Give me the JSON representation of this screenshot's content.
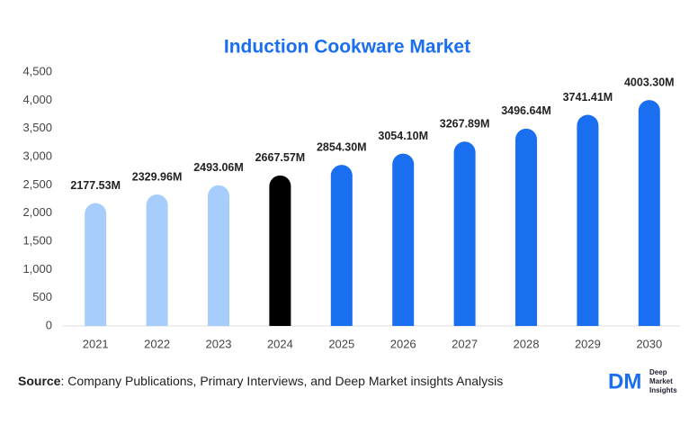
{
  "chart_data": {
    "type": "bar",
    "title": "Induction Cookware Market",
    "categories": [
      "2021",
      "2022",
      "2023",
      "2024",
      "2025",
      "2026",
      "2027",
      "2028",
      "2029",
      "2030"
    ],
    "values": [
      2177.53,
      2329.96,
      2493.06,
      2667.57,
      2854.3,
      3054.1,
      3267.89,
      3496.64,
      3741.41,
      4003.3
    ],
    "value_labels": [
      "2177.53M",
      "2329.96M",
      "2493.06M",
      "2667.57M",
      "2854.30M",
      "3054.10M",
      "3267.89M",
      "3496.64M",
      "3741.41M",
      "4003.30M"
    ],
    "colors": [
      "#a6cdfb",
      "#a6cdfb",
      "#a6cdfb",
      "#000000",
      "#1a6ef0",
      "#1a6ef0",
      "#1a6ef0",
      "#1a6ef0",
      "#1a6ef0",
      "#1a6ef0"
    ],
    "ylim": [
      0,
      4500
    ],
    "yticks": [
      0,
      500,
      {
        "value": 1000,
        "label": "1,000"
      },
      {
        "value": 1500,
        "label": "1,500"
      },
      {
        "value": 2000,
        "label": "2,000"
      },
      {
        "value": 2500,
        "label": "2,500"
      },
      {
        "value": 3000,
        "label": "3,000"
      },
      {
        "value": 3500,
        "label": "3,500"
      },
      {
        "value": 4000,
        "label": "4,000"
      },
      {
        "value": 4500,
        "label": "4,500"
      }
    ],
    "grid": false
  },
  "footer": {
    "source_label": "Source",
    "source_text": ": Company Publications, Primary Interviews, and Deep Market insights Analysis",
    "logo": {
      "mark": "DM",
      "lines": [
        "Deep",
        "Market",
        "Insights"
      ]
    }
  }
}
